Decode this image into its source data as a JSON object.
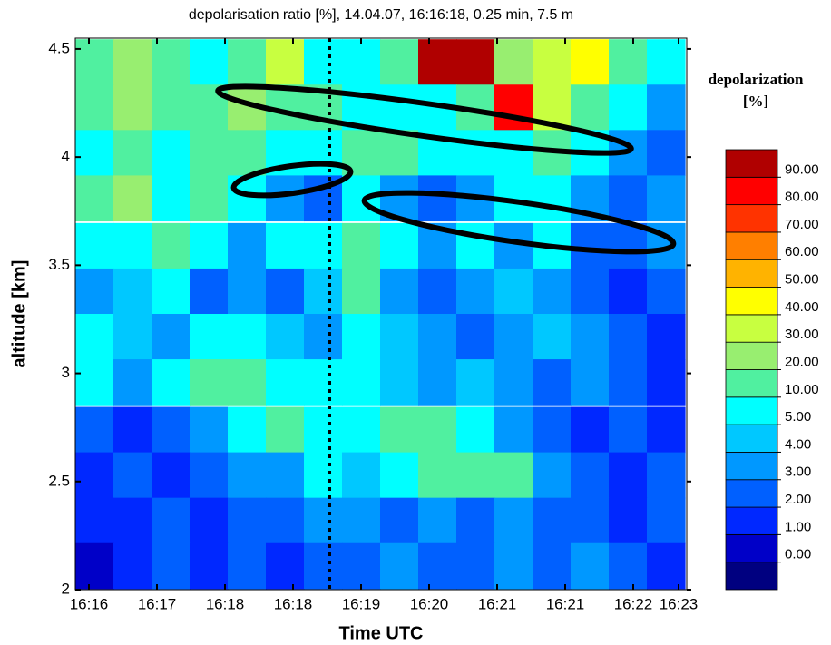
{
  "chart_data": {
    "type": "contour",
    "title": "depolarisation ratio [%], 14.04.07, 16:16:18, 0.25 min, 7.5 m",
    "xlabel": "Time UTC",
    "ylabel": "altitude [km]",
    "colorbar_label": "depolarization [%]",
    "xlim": [
      15.85,
      22.59
    ],
    "ylim": [
      2,
      4.55
    ],
    "xticks": [
      {
        "value": 16,
        "label": "16:16"
      },
      {
        "value": 16.75,
        "label": "16:17"
      },
      {
        "value": 17.5,
        "label": "16:18"
      },
      {
        "value": 18.25,
        "label": "16:18"
      },
      {
        "value": 19,
        "label": "16:19"
      },
      {
        "value": 19.75,
        "label": "16:20"
      },
      {
        "value": 20.5,
        "label": "16:21"
      },
      {
        "value": 21.25,
        "label": "16:21"
      },
      {
        "value": 22,
        "label": "16:22"
      },
      {
        "value": 22.5,
        "label": "16:23"
      }
    ],
    "yticks": [
      2,
      2.5,
      3,
      3.5,
      4,
      4.5
    ],
    "marker_x": 18.65,
    "levels": [
      {
        "value": 0,
        "label": "0.00"
      },
      {
        "value": 1,
        "label": "1.00"
      },
      {
        "value": 2,
        "label": "2.00"
      },
      {
        "value": 3,
        "label": "3.00"
      },
      {
        "value": 4,
        "label": "4.00"
      },
      {
        "value": 5,
        "label": "5.00"
      },
      {
        "value": 10,
        "label": "10.00"
      },
      {
        "value": 20,
        "label": "20.00"
      },
      {
        "value": 30,
        "label": "30.00"
      },
      {
        "value": 40,
        "label": "40.00"
      },
      {
        "value": 50,
        "label": "50.00"
      },
      {
        "value": 60,
        "label": "60.00"
      },
      {
        "value": 70,
        "label": "70.00"
      },
      {
        "value": 80,
        "label": "80.00"
      },
      {
        "value": 90,
        "label": "90.00"
      }
    ],
    "colors": [
      "#000080",
      "#0000c8",
      "#0028ff",
      "#0060ff",
      "#0098ff",
      "#00c8ff",
      "#00ffff",
      "#50f0a0",
      "#98ee70",
      "#c8ff40",
      "#ffff00",
      "#ffb300",
      "#ff7f00",
      "#ff3300",
      "#ff0000",
      "#b00000"
    ],
    "x": [
      16.06,
      16.48,
      16.9,
      17.32,
      17.74,
      18.16,
      18.58,
      19.0,
      19.42,
      19.84,
      20.26,
      20.68,
      21.1,
      21.52,
      21.94,
      22.36
    ],
    "y": [
      4.44,
      4.23,
      4.02,
      3.81,
      3.59,
      3.38,
      3.17,
      2.96,
      2.74,
      2.53,
      2.32,
      2.11
    ],
    "z": [
      [
        10,
        20,
        10,
        5,
        10,
        30,
        5,
        5,
        10,
        90,
        90,
        20,
        30,
        40,
        10,
        5
      ],
      [
        10,
        20,
        10,
        10,
        20,
        10,
        10,
        5,
        5,
        5,
        10,
        80,
        30,
        10,
        5,
        3
      ],
      [
        5,
        10,
        5,
        10,
        10,
        5,
        5,
        10,
        10,
        5,
        5,
        5,
        10,
        5,
        3,
        2
      ],
      [
        10,
        20,
        5,
        10,
        5,
        3,
        2,
        5,
        3,
        2,
        3,
        5,
        5,
        3,
        2,
        3
      ],
      [
        5,
        5,
        10,
        5,
        3,
        5,
        5,
        10,
        5,
        3,
        5,
        3,
        5,
        2,
        2,
        3
      ],
      [
        3,
        4,
        5,
        2,
        3,
        2,
        4,
        10,
        3,
        2,
        3,
        4,
        3,
        2,
        1,
        2
      ],
      [
        5,
        4,
        3,
        5,
        5,
        4,
        3,
        5,
        4,
        3,
        2,
        3,
        4,
        3,
        2,
        1
      ],
      [
        5,
        3,
        5,
        10,
        10,
        5,
        5,
        5,
        4,
        3,
        4,
        3,
        2,
        3,
        2,
        1
      ],
      [
        2,
        1,
        2,
        3,
        5,
        10,
        5,
        5,
        10,
        10,
        5,
        3,
        2,
        1,
        2,
        1
      ],
      [
        1,
        2,
        1,
        2,
        3,
        3,
        5,
        4,
        5,
        10,
        10,
        10,
        3,
        2,
        1,
        2
      ],
      [
        1,
        1,
        2,
        1,
        2,
        2,
        3,
        3,
        2,
        3,
        2,
        3,
        2,
        2,
        1,
        2
      ],
      [
        0,
        1,
        2,
        1,
        2,
        1,
        2,
        2,
        3,
        2,
        2,
        3,
        2,
        3,
        2,
        1
      ]
    ]
  }
}
